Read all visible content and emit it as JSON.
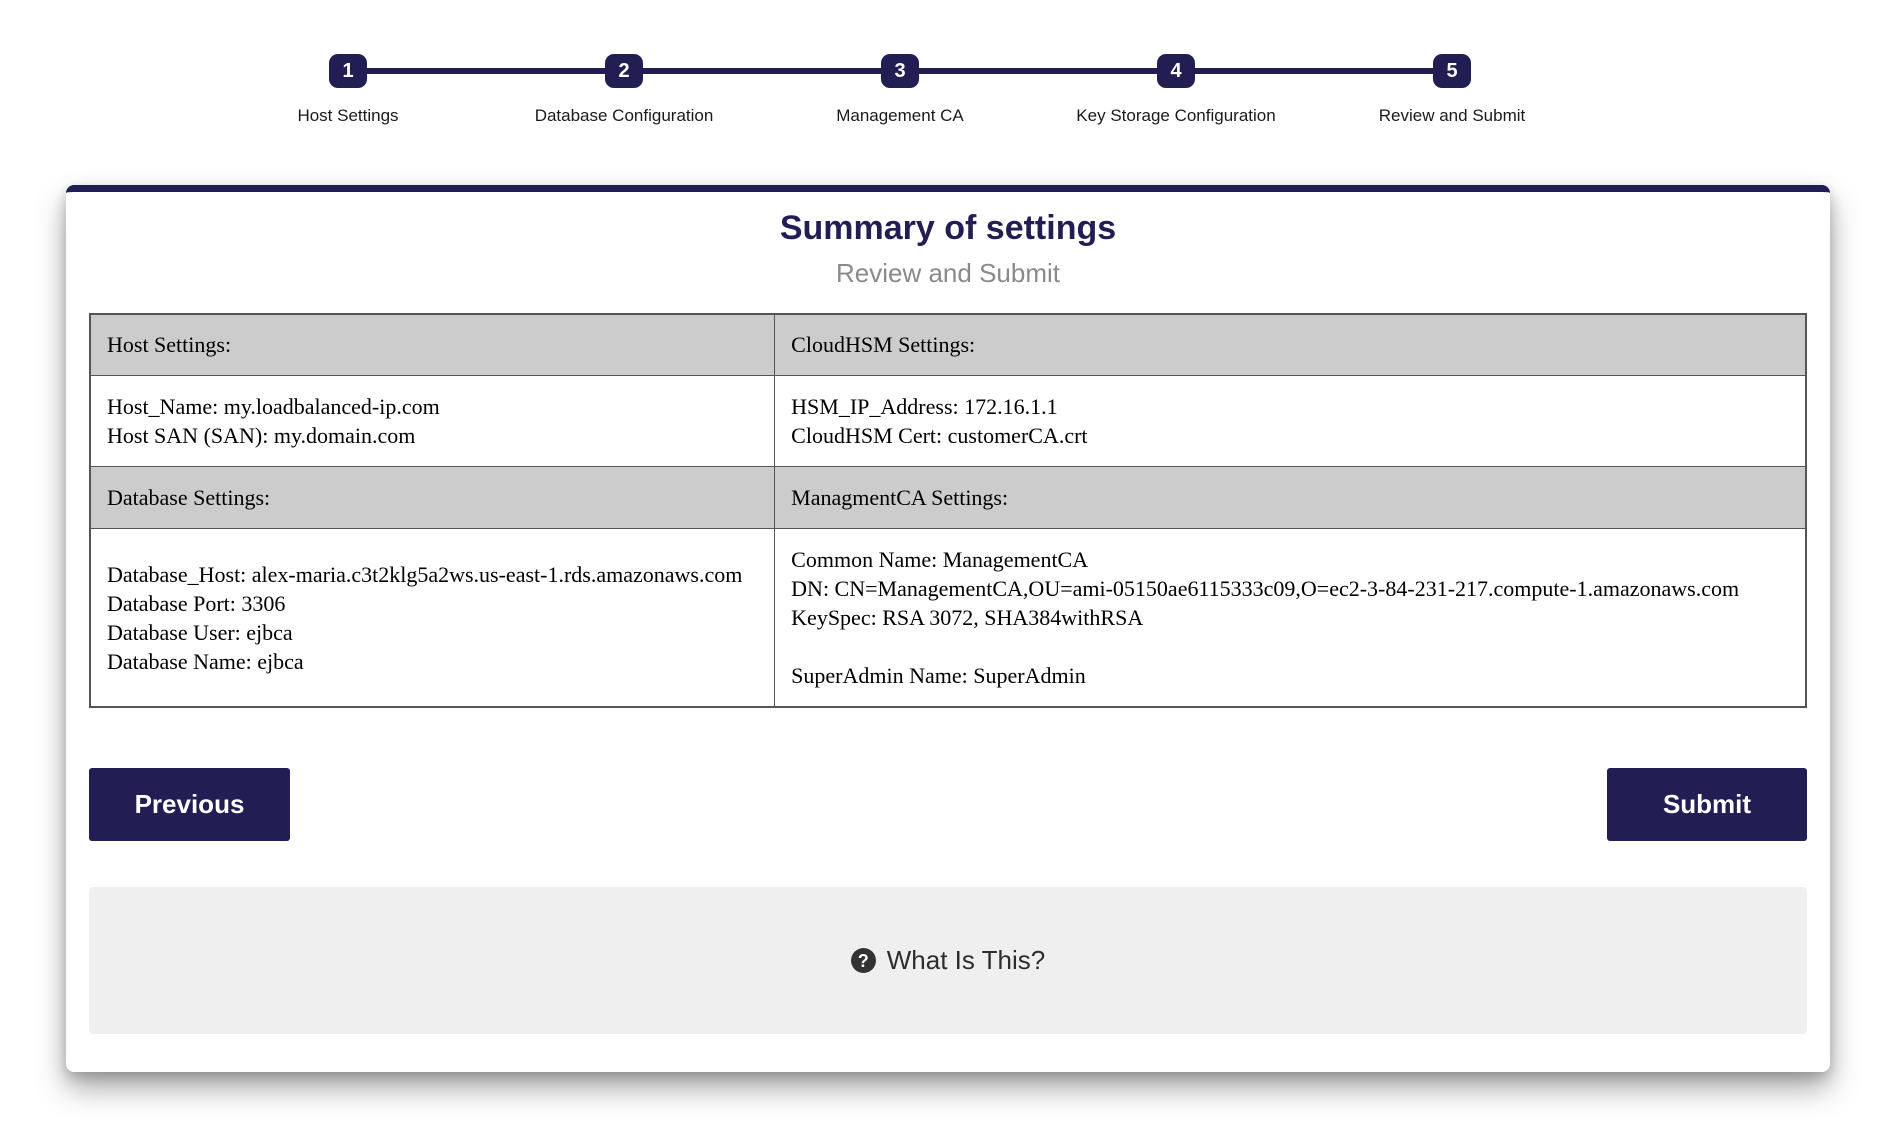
{
  "colors": {
    "navy": "#221e54",
    "header_gray": "#cccccc",
    "footer_gray": "#efefef",
    "border_gray": "#555555"
  },
  "stepper": {
    "steps": [
      {
        "number": "1",
        "label": "Host Settings"
      },
      {
        "number": "2",
        "label": "Database Configuration"
      },
      {
        "number": "3",
        "label": "Management CA"
      },
      {
        "number": "4",
        "label": "Key Storage Configuration"
      },
      {
        "number": "5",
        "label": "Review and Submit"
      }
    ]
  },
  "card": {
    "title": "Summary of settings",
    "subtitle": "Review and Submit",
    "table": {
      "sections": [
        {
          "left_header": "Host Settings:",
          "right_header": "CloudHSM Settings:",
          "left_lines": [
            "Host_Name: my.loadbalanced-ip.com",
            "Host SAN (SAN): my.domain.com"
          ],
          "right_lines": [
            "HSM_IP_Address: 172.16.1.1",
            "CloudHSM Cert: customerCA.crt"
          ]
        },
        {
          "left_header": "Database Settings:",
          "right_header": "ManagmentCA Settings:",
          "left_lines": [
            "Database_Host: alex-maria.c3t2klg5a2ws.us-east-1.rds.amazonaws.com",
            "Database Port: 3306",
            "Database User: ejbca",
            "Database Name: ejbca"
          ],
          "right_lines": [
            "Common Name: ManagementCA",
            "DN: CN=ManagementCA,OU=ami-05150ae6115333c09,O=ec2-3-84-231-217.compute-1.amazonaws.com",
            "KeySpec: RSA 3072, SHA384withRSA",
            "",
            "SuperAdmin Name: SuperAdmin"
          ]
        }
      ]
    },
    "buttons": {
      "previous": "Previous",
      "submit": "Submit"
    },
    "footer": {
      "help_icon": "?",
      "help_label": "What Is This?"
    }
  }
}
